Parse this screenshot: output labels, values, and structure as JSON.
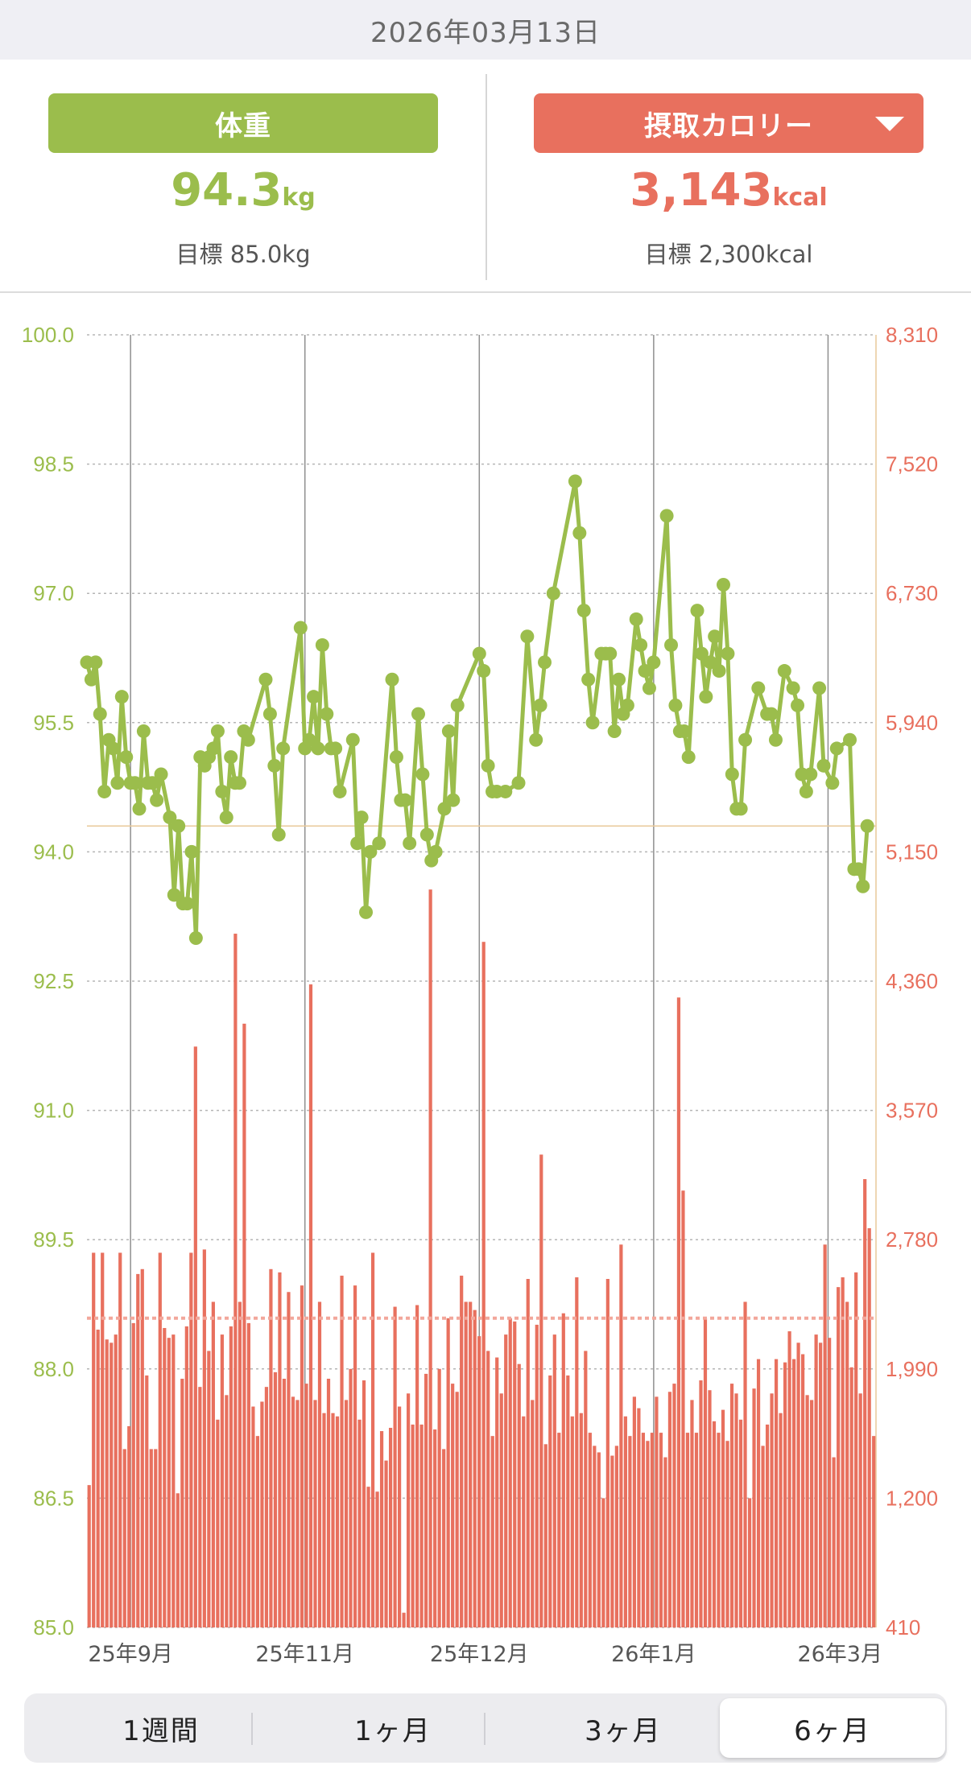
{
  "header": {
    "date": "2026年03月13日"
  },
  "summary": {
    "weight": {
      "label": "体重",
      "value": "94.3",
      "unit": "kg",
      "goal": "目標 85.0kg"
    },
    "calorie": {
      "label": "摂取カロリー",
      "value": "3,143",
      "unit": "kcal",
      "goal": "目標 2,300kcal",
      "dropdown_icon": "triangle-down-icon"
    }
  },
  "tabs": [
    {
      "label": "1週間",
      "selected": false
    },
    {
      "label": "1ヶ月",
      "selected": false
    },
    {
      "label": "3ヶ月",
      "selected": false
    },
    {
      "label": "6ヶ月",
      "selected": true
    }
  ],
  "colors": {
    "green": "#9bbd4c",
    "red": "#e8705e",
    "grid": "#b5b5b5"
  },
  "chart_data": {
    "type": "line+bar",
    "y_left": {
      "ticks": [
        "100.0",
        "98.5",
        "97.0",
        "95.5",
        "94.0",
        "92.5",
        "91.0",
        "89.5",
        "88.0",
        "86.5",
        "85.0"
      ],
      "range": [
        85.0,
        100.0
      ],
      "unit": "kg"
    },
    "y_right": {
      "ticks": [
        "8,310",
        "7,520",
        "6,730",
        "5,940",
        "5,150",
        "4,360",
        "3,570",
        "2,780",
        "1,990",
        "1,200",
        "410"
      ],
      "range": [
        410,
        8310
      ],
      "unit": "kcal"
    },
    "x_labels": [
      "25年9月",
      "25年11月",
      "25年12月",
      "26年1月",
      "26年3月"
    ],
    "x_day_range": [
      0,
      181
    ],
    "month_starts": [
      10,
      50,
      90,
      130,
      170
    ],
    "goal_calorie": 2300,
    "current_weight_line": 94.3,
    "weight_series": [
      [
        0,
        96.2
      ],
      [
        1,
        96.0
      ],
      [
        2,
        96.2
      ],
      [
        3,
        95.6
      ],
      [
        4,
        94.7
      ],
      [
        5,
        95.3
      ],
      [
        6,
        95.2
      ],
      [
        7,
        94.8
      ],
      [
        8,
        95.8
      ],
      [
        9,
        95.1
      ],
      [
        10,
        94.8
      ],
      [
        11,
        94.8
      ],
      [
        12,
        94.5
      ],
      [
        13,
        95.4
      ],
      [
        14,
        94.8
      ],
      [
        15,
        94.8
      ],
      [
        16,
        94.6
      ],
      [
        17,
        94.9
      ],
      [
        19,
        94.4
      ],
      [
        20,
        93.5
      ],
      [
        21,
        94.3
      ],
      [
        22,
        93.4
      ],
      [
        23,
        93.4
      ],
      [
        24,
        94.0
      ],
      [
        25,
        93.0
      ],
      [
        26,
        95.1
      ],
      [
        27,
        95.0
      ],
      [
        28,
        95.1
      ],
      [
        29,
        95.2
      ],
      [
        30,
        95.4
      ],
      [
        31,
        94.7
      ],
      [
        32,
        94.4
      ],
      [
        33,
        95.1
      ],
      [
        34,
        94.8
      ],
      [
        35,
        94.8
      ],
      [
        36,
        95.4
      ],
      [
        37,
        95.3
      ],
      [
        41,
        96.0
      ],
      [
        42,
        95.6
      ],
      [
        43,
        95.0
      ],
      [
        44,
        94.2
      ],
      [
        45,
        95.2
      ],
      [
        49,
        96.6
      ],
      [
        50,
        95.2
      ],
      [
        51,
        95.3
      ],
      [
        52,
        95.8
      ],
      [
        53,
        95.2
      ],
      [
        54,
        96.4
      ],
      [
        55,
        95.6
      ],
      [
        56,
        95.2
      ],
      [
        57,
        95.2
      ],
      [
        58,
        94.7
      ],
      [
        61,
        95.3
      ],
      [
        62,
        94.1
      ],
      [
        63,
        94.4
      ],
      [
        64,
        93.3
      ],
      [
        65,
        94.0
      ],
      [
        67,
        94.1
      ],
      [
        70,
        96.0
      ],
      [
        71,
        95.1
      ],
      [
        72,
        94.6
      ],
      [
        73,
        94.6
      ],
      [
        74,
        94.1
      ],
      [
        76,
        95.6
      ],
      [
        77,
        94.9
      ],
      [
        78,
        94.2
      ],
      [
        79,
        93.9
      ],
      [
        80,
        94.0
      ],
      [
        82,
        94.5
      ],
      [
        83,
        95.4
      ],
      [
        84,
        94.6
      ],
      [
        85,
        95.7
      ],
      [
        90,
        96.3
      ],
      [
        91,
        96.1
      ],
      [
        92,
        95.0
      ],
      [
        93,
        94.7
      ],
      [
        94,
        94.7
      ],
      [
        96,
        94.7
      ],
      [
        99,
        94.8
      ],
      [
        101,
        96.5
      ],
      [
        103,
        95.3
      ],
      [
        104,
        95.7
      ],
      [
        105,
        96.2
      ],
      [
        107,
        97.0
      ],
      [
        112,
        98.3
      ],
      [
        113,
        97.7
      ],
      [
        114,
        96.8
      ],
      [
        115,
        96.0
      ],
      [
        116,
        95.5
      ],
      [
        118,
        96.3
      ],
      [
        119,
        96.3
      ],
      [
        120,
        96.3
      ],
      [
        121,
        95.4
      ],
      [
        122,
        96.0
      ],
      [
        123,
        95.6
      ],
      [
        124,
        95.7
      ],
      [
        126,
        96.7
      ],
      [
        127,
        96.4
      ],
      [
        128,
        96.1
      ],
      [
        129,
        95.9
      ],
      [
        130,
        96.2
      ],
      [
        133,
        97.9
      ],
      [
        134,
        96.4
      ],
      [
        135,
        95.7
      ],
      [
        136,
        95.4
      ],
      [
        137,
        95.4
      ],
      [
        138,
        95.1
      ],
      [
        140,
        96.8
      ],
      [
        141,
        96.3
      ],
      [
        142,
        95.8
      ],
      [
        143,
        96.2
      ],
      [
        144,
        96.5
      ],
      [
        145,
        96.1
      ],
      [
        146,
        97.1
      ],
      [
        147,
        96.3
      ],
      [
        148,
        94.9
      ],
      [
        149,
        94.5
      ],
      [
        150,
        94.5
      ],
      [
        151,
        95.3
      ],
      [
        154,
        95.9
      ],
      [
        156,
        95.6
      ],
      [
        157,
        95.6
      ],
      [
        158,
        95.3
      ],
      [
        160,
        96.1
      ],
      [
        162,
        95.9
      ],
      [
        163,
        95.7
      ],
      [
        164,
        94.9
      ],
      [
        165,
        94.7
      ],
      [
        166,
        94.9
      ],
      [
        168,
        95.9
      ],
      [
        169,
        95.0
      ],
      [
        171,
        94.8
      ],
      [
        172,
        95.2
      ],
      [
        175,
        95.3
      ],
      [
        176,
        93.8
      ],
      [
        177,
        93.8
      ],
      [
        178,
        93.6
      ],
      [
        179,
        94.3
      ]
    ],
    "calorie_series": [
      1280,
      2700,
      2230,
      2700,
      2170,
      2150,
      2200,
      2700,
      1500,
      1640,
      2270,
      2570,
      2600,
      1950,
      1500,
      1500,
      2700,
      2240,
      2180,
      2200,
      1230,
      1930,
      2250,
      2700,
      3960,
      1880,
      2720,
      2100,
      2400,
      1680,
      2200,
      1830,
      2250,
      4650,
      2400,
      4100,
      2270,
      1760,
      1580,
      1790,
      1880,
      2600,
      1970,
      2580,
      1930,
      2460,
      1820,
      1800,
      2500,
      1900,
      4340,
      1800,
      2400,
      1720,
      1930,
      1720,
      1700,
      2560,
      1800,
      1990,
      2500,
      1680,
      1920,
      1270,
      2700,
      1240,
      1610,
      1430,
      1630,
      2370,
      1760,
      500,
      1840,
      1650,
      2380,
      1650,
      1960,
      4920,
      1620,
      1990,
      1500,
      2300,
      1900,
      1850,
      2560,
      2400,
      2400,
      2350,
      2190,
      4600,
      2100,
      1580,
      2060,
      1840,
      2200,
      2300,
      2280,
      2020,
      1700,
      2540,
      1800,
      2260,
      3300,
      1530,
      1950,
      2200,
      1600,
      2330,
      1950,
      1700,
      2550,
      1720,
      2100,
      1600,
      1520,
      1480,
      1200,
      2540,
      1460,
      1520,
      2750,
      1700,
      1580,
      1820,
      1750,
      1600,
      1550,
      1600,
      1820,
      1600,
      1450,
      1850,
      1900,
      4260,
      3080,
      1600,
      1800,
      1600,
      1920,
      2300,
      1860,
      1670,
      1600,
      1740,
      1550,
      1900,
      1840,
      1680,
      2400,
      1200,
      1870,
      2050,
      1520,
      1650,
      1840,
      2050,
      1720,
      2030,
      2220,
      2050,
      2150,
      2080,
      1830,
      1800,
      2200,
      2150,
      2750,
      2180,
      1450,
      2490,
      2550,
      2400,
      2000,
      2580,
      1840,
      3150,
      2850,
      1580
    ]
  }
}
